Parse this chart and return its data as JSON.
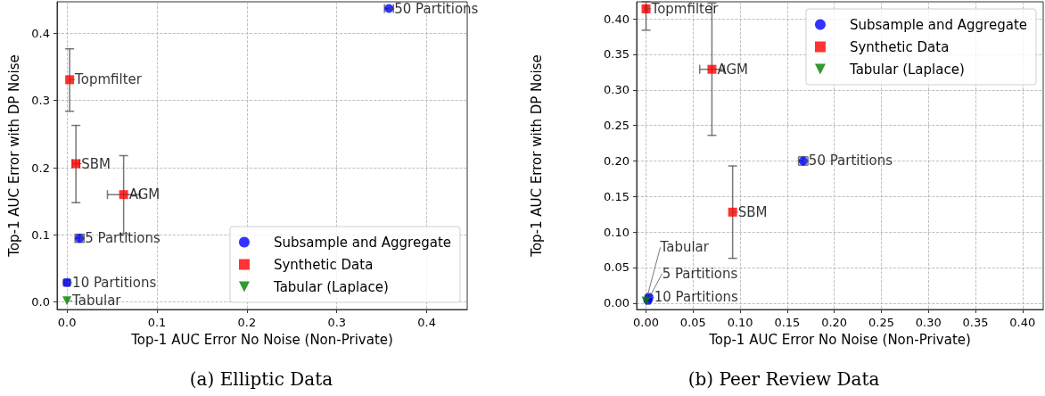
{
  "chart_data": [
    {
      "type": "scatter",
      "title": "(a) Elliptic Data",
      "xlabel": "Top-1 AUC Error No Noise (Non-Private)",
      "ylabel": "Top-1 AUC Error with DP Noise",
      "xlim": [
        -0.011,
        0.445
      ],
      "ylim": [
        -0.011,
        0.447
      ],
      "xticks": [
        {
          "value": 0,
          "label": "0.0"
        },
        0.1,
        0.2,
        0.3,
        0.4
      ],
      "yticks": [
        {
          "value": 0,
          "label": "0.0"
        },
        0.1,
        0.2,
        0.3,
        0.4
      ],
      "grid": true,
      "legend": "bottom right",
      "series": [
        {
          "name": "Subsample and Aggregate",
          "color": "#0000ff",
          "marker": "circle",
          "x": [
            0.358,
            0.014,
            0.0
          ],
          "values": [
            0.437,
            0.095,
            0.029
          ],
          "errors": [
            null,
            0.006,
            0.004
          ],
          "xerrors": [
            0.005,
            0.005,
            0.003
          ]
        },
        {
          "name": "Synthetic Data",
          "color": "#ff0000",
          "marker": "square",
          "x": [
            0.003,
            0.01,
            0.063
          ],
          "values": [
            0.331,
            0.206,
            0.16
          ],
          "errors": [
            [
              0.284,
              0.377
            ],
            [
              0.148,
              0.263
            ],
            [
              0.102,
              0.218
            ]
          ],
          "xerrors": [
            null,
            0.004,
            [
              0.045,
              0.081
            ]
          ]
        },
        {
          "name": "Tabular (Laplace)",
          "color": "#008000",
          "marker": "triangle",
          "x": [
            0.0
          ],
          "values": [
            0.002
          ]
        }
      ],
      "annotations": [
        {
          "text": "50 Partitions",
          "x": 0.358,
          "y": 0.437
        },
        {
          "text": "5 Partitions",
          "x": 0.014,
          "y": 0.095
        },
        {
          "text": "10 Partitions",
          "x": 0.0,
          "y": 0.029
        },
        {
          "text": "Topmfilter",
          "x": 0.003,
          "y": 0.331
        },
        {
          "text": "SBM",
          "x": 0.01,
          "y": 0.206
        },
        {
          "text": "AGM",
          "x": 0.063,
          "y": 0.16
        },
        {
          "text": "Tabular",
          "x": 0.0,
          "y": 0.002
        }
      ]
    },
    {
      "type": "scatter",
      "title": "(b) Peer Review Data",
      "xlabel": "Top-1 AUC Error No Noise (Non-Private)",
      "ylabel": "Top-1 AUC Error with DP Noise",
      "xlim": [
        -0.01,
        0.422
      ],
      "ylim": [
        -0.009,
        0.424
      ],
      "xticks": [
        {
          "value": 0,
          "label": "0.00"
        },
        0.05,
        {
          "value": 0.1,
          "label": "0.10"
        },
        0.15,
        {
          "value": 0.2,
          "label": "0.20"
        },
        0.25,
        {
          "value": 0.3,
          "label": "0.30"
        },
        0.35,
        {
          "value": 0.4,
          "label": "0.40"
        }
      ],
      "yticks": [
        {
          "value": 0,
          "label": "0.00"
        },
        0.05,
        {
          "value": 0.1,
          "label": "0.10"
        },
        0.15,
        {
          "value": 0.2,
          "label": "0.20"
        },
        0.25,
        {
          "value": 0.3,
          "label": "0.30"
        },
        0.35,
        {
          "value": 0.4,
          "label": "0.40"
        }
      ],
      "grid": true,
      "legend": "top right",
      "series": [
        {
          "name": "Subsample and Aggregate",
          "color": "#0000ff",
          "marker": "circle",
          "x": [
            0.167,
            0.003,
            0.002
          ],
          "values": [
            0.2,
            0.008,
            0.004
          ],
          "errors": [
            0.006,
            0.003,
            0.002
          ],
          "xerrors": [
            0.005,
            0.002,
            0.002
          ]
        },
        {
          "name": "Synthetic Data",
          "color": "#ff0000",
          "marker": "square",
          "x": [
            0.0,
            0.07,
            0.092
          ],
          "values": [
            0.414,
            0.329,
            0.128
          ],
          "errors": [
            [
              0.384,
              0.424
            ],
            [
              0.236,
              0.422
            ],
            [
              0.063,
              0.193
            ]
          ],
          "xerrors": [
            0.001,
            [
              0.057,
              0.083
            ],
            null
          ]
        },
        {
          "name": "Tabular (Laplace)",
          "color": "#008000",
          "marker": "triangle",
          "x": [
            0.0
          ],
          "values": [
            0.003
          ]
        }
      ],
      "annotations": [
        {
          "text": "Topmfilter",
          "x": 0.0,
          "y": 0.414
        },
        {
          "text": "AGM",
          "x": 0.07,
          "y": 0.329
        },
        {
          "text": "50 Partitions",
          "x": 0.167,
          "y": 0.2
        },
        {
          "text": "SBM",
          "x": 0.092,
          "y": 0.128
        },
        {
          "text": "10 Partitions",
          "x": 0.003,
          "y": 0.008
        },
        {
          "text": "5 Partitions",
          "x": 0.002,
          "y": 0.004
        },
        {
          "text": "Tabular",
          "x": 0.0,
          "y": 0.003
        }
      ]
    }
  ]
}
